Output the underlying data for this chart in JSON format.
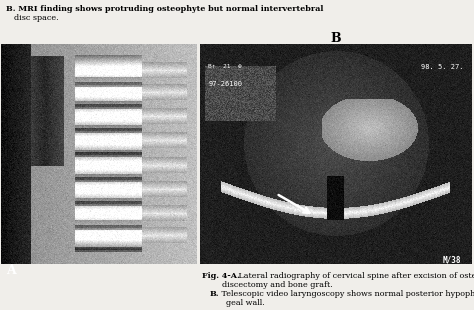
{
  "background_color": "#f0eeea",
  "top_text_line1": "B. MRI finding shows protruding osteophyte but normal intervertebral",
  "top_text_line2": "disc space.",
  "label_B": "B",
  "label_A": "A",
  "fig_caption_bold": "Fig. 4-A.",
  "fig_caption_a": " Lateral radiography of cervical spine after excision of osteophyte,",
  "fig_caption_a2": "discectomy and bone graft.",
  "fig_caption_bold_b": "B.",
  "fig_caption_b": " Telescopic video laryngoscopy shows normal posterior hypopharyn-",
  "fig_caption_b2": "geal wall.",
  "figure_size": [
    4.74,
    3.1
  ],
  "dpi": 100
}
